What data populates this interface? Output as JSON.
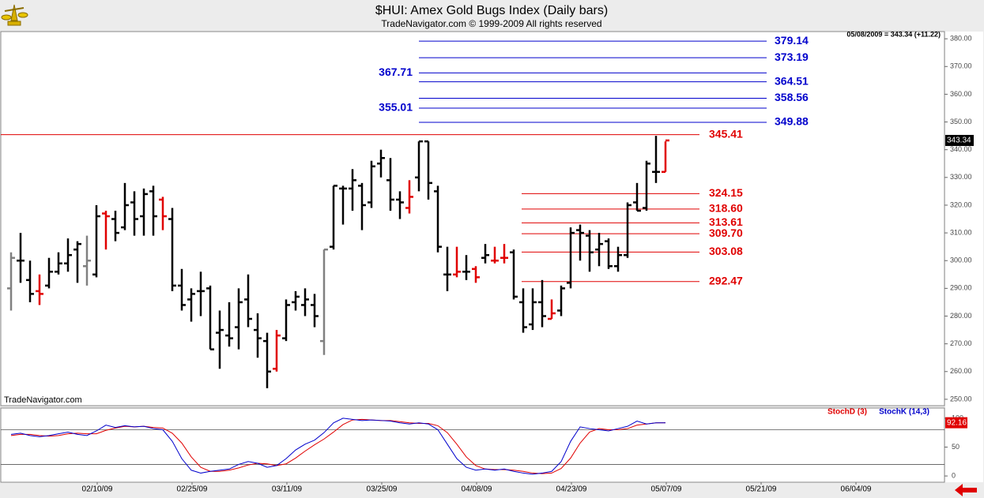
{
  "chart_data": [
    {
      "type": "ohlc",
      "title": "$HUI:  Amex Gold Bugs Index  (Daily bars)",
      "subtitle": "TradeNavigator.com © 1999-2009 All rights reserved",
      "info": "05/08/2009 = 343.34 (+11.22)",
      "watermark": "TradeNavigator.com",
      "x": [
        "01/29/09",
        "01/30/09",
        "02/02/09",
        "02/03/09",
        "02/04/09",
        "02/05/09",
        "02/06/09",
        "02/09/09",
        "02/10/09",
        "02/11/09",
        "02/12/09",
        "02/13/09",
        "02/17/09",
        "02/18/09",
        "02/19/09",
        "02/20/09",
        "02/23/09",
        "02/24/09",
        "02/25/09",
        "02/26/09",
        "02/27/09",
        "03/02/09",
        "03/03/09",
        "03/04/09",
        "03/05/09",
        "03/06/09",
        "03/09/09",
        "03/10/09",
        "03/11/09",
        "03/12/09",
        "03/13/09",
        "03/16/09",
        "03/17/09",
        "03/18/09",
        "03/19/09",
        "03/20/09",
        "03/23/09",
        "03/24/09",
        "03/25/09",
        "03/26/09",
        "03/27/09",
        "03/30/09",
        "03/31/09",
        "04/01/09",
        "04/02/09",
        "04/03/09",
        "04/06/09",
        "04/07/09",
        "04/08/09",
        "04/09/09",
        "04/13/09",
        "04/14/09",
        "04/15/09",
        "04/16/09",
        "04/17/09",
        "04/20/09",
        "04/21/09",
        "04/22/09",
        "04/23/09",
        "04/24/09",
        "04/27/09",
        "04/28/09",
        "04/29/09",
        "04/30/09",
        "05/01/09",
        "05/04/09",
        "05/05/09",
        "05/06/09",
        "05/07/09",
        "05/08/09"
      ],
      "open": [
        290,
        300,
        293,
        289,
        291,
        296,
        299,
        304,
        298,
        295,
        317,
        315,
        312,
        321,
        316,
        325,
        322,
        315,
        291,
        286,
        289,
        290,
        274,
        273,
        276,
        286,
        275,
        271,
        261,
        272,
        285,
        284,
        284,
        271,
        305,
        326,
        326,
        327,
        321,
        335,
        329,
        322,
        319,
        330,
        343,
        325,
        295,
        295,
        296,
        297,
        301,
        300,
        301,
        303,
        285,
        277,
        285,
        279,
        282,
        292,
        311,
        309,
        304,
        307,
        298,
        302,
        321,
        319,
        332,
        332
      ],
      "high": [
        303,
        310,
        300,
        295,
        301,
        303,
        308,
        307,
        309,
        320,
        318,
        318,
        328,
        325,
        326,
        327,
        323,
        319,
        297,
        290,
        296,
        291,
        282,
        285,
        290,
        295,
        281,
        274,
        275,
        286,
        289,
        290,
        288,
        304,
        327,
        327,
        333,
        328,
        336,
        340,
        337,
        325,
        329,
        343,
        343,
        327,
        305,
        305,
        302,
        298,
        306,
        305,
        306,
        304,
        290,
        290,
        293,
        286,
        291,
        312,
        313,
        311,
        310,
        308,
        305,
        321,
        328,
        336,
        345,
        343
      ],
      "low": [
        282,
        292,
        285,
        284,
        290,
        295,
        296,
        292,
        291,
        294,
        304,
        307,
        311,
        309,
        309,
        309,
        311,
        289,
        282,
        278,
        280,
        268,
        261,
        269,
        268,
        276,
        265,
        254,
        260,
        271,
        282,
        280,
        276,
        266,
        304,
        313,
        318,
        311,
        319,
        330,
        318,
        315,
        317,
        325,
        322,
        303,
        289,
        294,
        293,
        292,
        299,
        299,
        299,
        286,
        274,
        275,
        276,
        279,
        280,
        290,
        300,
        296,
        298,
        297,
        296,
        301,
        318,
        318,
        328,
        332
      ],
      "close": [
        301,
        300,
        288,
        288,
        296,
        299,
        302,
        306,
        300,
        316,
        316,
        310,
        320,
        315,
        324,
        316,
        316,
        291,
        284,
        288,
        289,
        268,
        275,
        272,
        285,
        279,
        272,
        260,
        273,
        284,
        287,
        286,
        280,
        304,
        327,
        326,
        329,
        320,
        334,
        337,
        322,
        321,
        323,
        343,
        328,
        305,
        295,
        296,
        296,
        294,
        302,
        300,
        301,
        287,
        276,
        285,
        280,
        281,
        290,
        310,
        310,
        303,
        306,
        298,
        302,
        320,
        318,
        335,
        332,
        343.34
      ],
      "colors": [
        "#808080",
        "#000000",
        "#000000",
        "#e00000",
        "#000000",
        "#000000",
        "#000000",
        "#000000",
        "#808080",
        "#000000",
        "#e00000",
        "#000000",
        "#000000",
        "#000000",
        "#000000",
        "#000000",
        "#e00000",
        "#000000",
        "#000000",
        "#000000",
        "#000000",
        "#000000",
        "#000000",
        "#000000",
        "#000000",
        "#000000",
        "#000000",
        "#000000",
        "#e00000",
        "#000000",
        "#000000",
        "#000000",
        "#000000",
        "#808080",
        "#000000",
        "#000000",
        "#000000",
        "#000000",
        "#000000",
        "#000000",
        "#000000",
        "#000000",
        "#e00000",
        "#000000",
        "#000000",
        "#000000",
        "#000000",
        "#e00000",
        "#000000",
        "#e00000",
        "#000000",
        "#e00000",
        "#e00000",
        "#000000",
        "#000000",
        "#000000",
        "#000000",
        "#e00000",
        "#000000",
        "#000000",
        "#000000",
        "#000000",
        "#000000",
        "#000000",
        "#000000",
        "#000000",
        "#000000",
        "#000000",
        "#000000",
        "#e00000"
      ],
      "ylim": [
        247.7,
        382.6
      ],
      "yticks": [
        {
          "value": 250,
          "label": "250.00"
        },
        {
          "value": 260,
          "label": "260.00"
        },
        {
          "value": 270,
          "label": "270.00"
        },
        {
          "value": 280,
          "label": "280.00"
        },
        {
          "value": 290,
          "label": "290.00"
        },
        {
          "value": 300,
          "label": "300.00"
        },
        {
          "value": 310,
          "label": "310.00"
        },
        {
          "value": 320,
          "label": "320.00"
        },
        {
          "value": 330,
          "label": "330.00"
        },
        {
          "value": 340,
          "label": "340.00"
        },
        {
          "value": 350,
          "label": "350.00"
        },
        {
          "value": 360,
          "label": "360.00"
        },
        {
          "value": 370,
          "label": "370.00"
        },
        {
          "value": 380,
          "label": "380.00"
        }
      ],
      "xticks": [
        "02/10/09",
        "02/25/09",
        "03/11/09",
        "03/25/09",
        "04/08/09",
        "04/23/09",
        "05/07/09",
        "05/21/09",
        "06/04/09"
      ],
      "level_groups": [
        {
          "color": "#0000cc",
          "levels": [
            {
              "value": 379.14,
              "label": "379.14"
            },
            {
              "value": 373.19,
              "label": "373.19"
            },
            {
              "value": 364.51,
              "label": "364.51"
            },
            {
              "value": 358.56,
              "label": "358.56"
            },
            {
              "value": 349.88,
              "label": "349.88"
            }
          ]
        },
        {
          "color": "#0000cc",
          "levels": [
            {
              "value": 367.71,
              "label": "367.71"
            },
            {
              "value": 355.01,
              "label": "355.01"
            }
          ]
        },
        {
          "color": "#e00000",
          "levels": [
            {
              "value": 345.41,
              "label": "345.41"
            },
            {
              "value": 324.15,
              "label": "324.15"
            },
            {
              "value": 318.6,
              "label": "318.60"
            },
            {
              "value": 313.61,
              "label": "313.61"
            },
            {
              "value": 309.7,
              "label": "309.70"
            },
            {
              "value": 303.08,
              "label": "303.08"
            },
            {
              "value": 292.47,
              "label": "292.47"
            }
          ]
        }
      ]
    },
    {
      "type": "line",
      "ylim": [
        -10.8,
        117.6
      ],
      "yticks": [
        0,
        50,
        100
      ],
      "bands": [
        20,
        80
      ],
      "series": [
        {
          "name": "StochD (3)",
          "color": "#e00000",
          "values": [
            70,
            72,
            72,
            70,
            69,
            70,
            73,
            74,
            73,
            73,
            79,
            83,
            86,
            85,
            86,
            84,
            83,
            74,
            57,
            33,
            15,
            8,
            8,
            10,
            14,
            19,
            22,
            21,
            18,
            21,
            31,
            43,
            54,
            64,
            76,
            89,
            97,
            98,
            97,
            96,
            96,
            94,
            92,
            91,
            91,
            87,
            75,
            55,
            33,
            18,
            12,
            11,
            11,
            10,
            8,
            5,
            4,
            5,
            13,
            31,
            57,
            76,
            82,
            80,
            80,
            82,
            88,
            90,
            92,
            92.16
          ]
        },
        {
          "name": "StochK (14,3)",
          "color": "#0000cc",
          "values": [
            72,
            74,
            70,
            68,
            70,
            73,
            76,
            72,
            70,
            78,
            88,
            84,
            87,
            85,
            86,
            82,
            80,
            60,
            30,
            10,
            5,
            8,
            10,
            12,
            20,
            25,
            22,
            15,
            18,
            30,
            45,
            55,
            62,
            75,
            92,
            100,
            98,
            96,
            97,
            96,
            95,
            92,
            90,
            92,
            90,
            80,
            55,
            30,
            15,
            10,
            12,
            10,
            12,
            8,
            5,
            3,
            5,
            8,
            25,
            60,
            85,
            82,
            80,
            78,
            82,
            86,
            95,
            90,
            92,
            92
          ]
        }
      ]
    }
  ]
}
